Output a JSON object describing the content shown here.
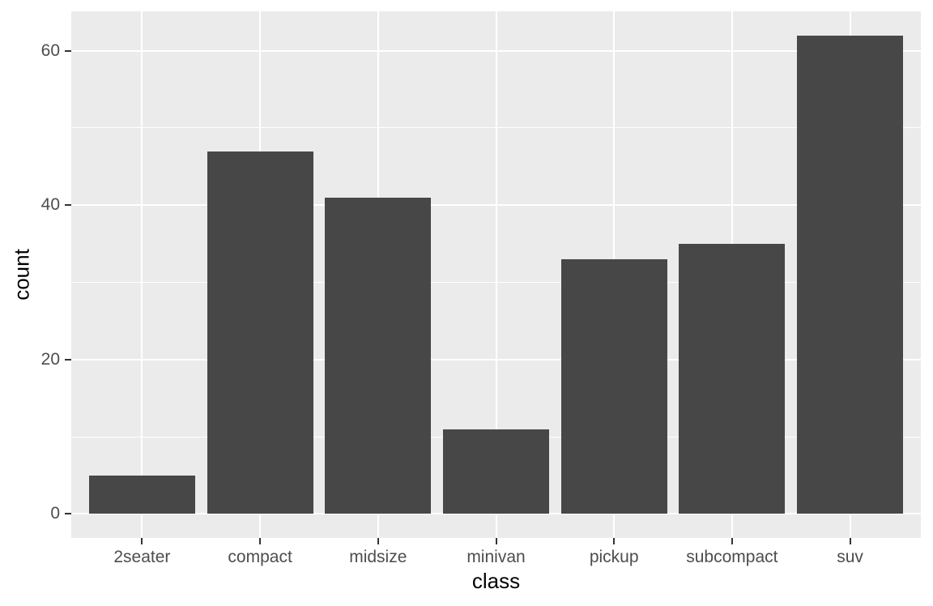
{
  "chart_data": {
    "type": "bar",
    "title": "",
    "xlabel": "class",
    "ylabel": "count",
    "categories": [
      "2seater",
      "compact",
      "midsize",
      "minivan",
      "pickup",
      "subcompact",
      "suv"
    ],
    "values": [
      5,
      47,
      41,
      11,
      33,
      35,
      62
    ],
    "y_ticks": [
      0,
      20,
      40,
      60
    ],
    "y_minor_gridlines": [
      10,
      30,
      50
    ],
    "ylim": [
      0,
      62
    ],
    "y_axis_expansion": [
      -3.1,
      65.1
    ],
    "bar_width_fraction": 0.9,
    "legend": "none",
    "grid": "white major gridlines at y ticks and category centers, white minor gridlines between y ticks",
    "style": "ggplot2 grey theme",
    "colors": {
      "page_bg": "#FFFFFF",
      "panel_bg": "#EBEBEB",
      "bar_fill": "#474747",
      "grid_line": "#FFFFFF",
      "tick_mark": "#333333",
      "tick_label": "#4D4D4D",
      "axis_title": "#000000"
    }
  }
}
